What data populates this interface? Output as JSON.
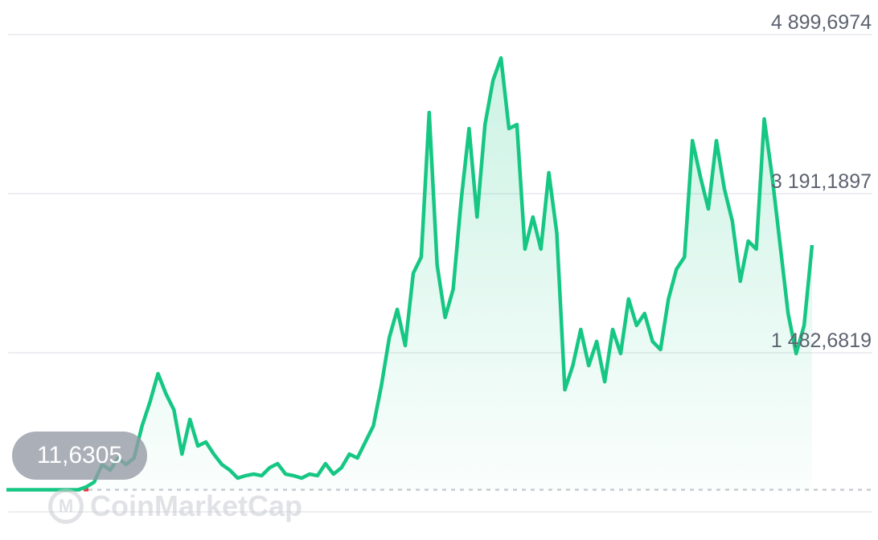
{
  "chart_data": {
    "type": "area",
    "title": "",
    "xlabel": "",
    "ylabel": "",
    "y_ticks": [
      "4 899,6974",
      "3 191,1897",
      "1 482,6819"
    ],
    "y_tick_values": [
      4899.6974,
      3191.1897,
      1482.6819
    ],
    "ylim": [
      -225.8,
      4899.6974
    ],
    "grid": true,
    "baseline_label": "11,6305",
    "baseline_value": 11.6305,
    "line_color": "#16c784",
    "baseline_color_down": "#ea3943",
    "series": [
      {
        "values": [
          11.63,
          11.63,
          11.63,
          11.63,
          11.63,
          11.63,
          11.63,
          11.63,
          11.63,
          11.63,
          41.7,
          93.5,
          283,
          223,
          352,
          283,
          352,
          698,
          956,
          1258,
          1043,
          870,
          395,
          767,
          482,
          525,
          395,
          283,
          223,
          137,
          163,
          180,
          163,
          249,
          292,
          180,
          163,
          137,
          180,
          163,
          292,
          180,
          249,
          395,
          352,
          525,
          698,
          1129,
          1647,
          1949,
          1560,
          2337,
          2510,
          4063,
          2423,
          1862,
          2164,
          3114,
          3890,
          2941,
          3933,
          4408,
          4649,
          3890,
          3933,
          2596,
          2941,
          2596,
          3416,
          2768,
          1086,
          1345,
          1733,
          1345,
          1604,
          1172,
          1733,
          1474,
          2061,
          1776,
          1905,
          1604,
          1517,
          2061,
          2380,
          2510,
          3761,
          3372,
          3027,
          3761,
          3243,
          2898,
          2251,
          2682,
          2596,
          3994,
          3372,
          2639,
          1905,
          1474,
          1776,
          2639
        ]
      }
    ],
    "watermark": "CoinMarketCap"
  }
}
